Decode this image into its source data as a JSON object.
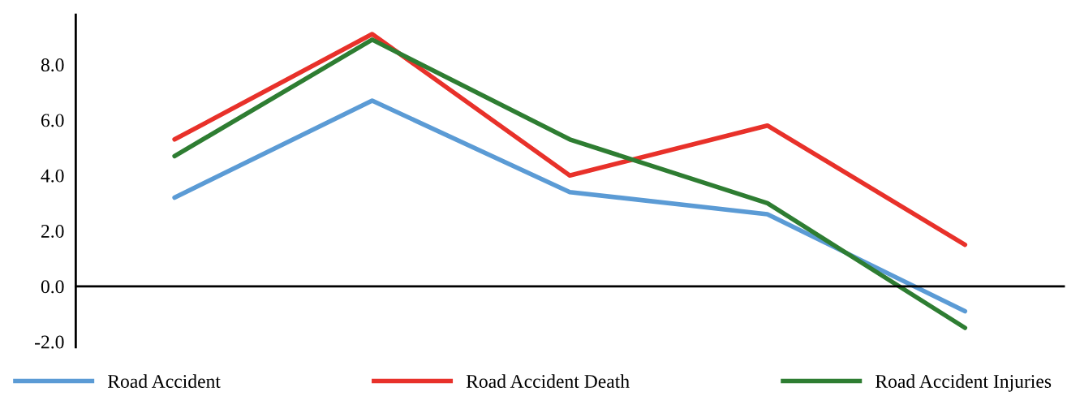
{
  "chart_data": {
    "type": "line",
    "categories": [
      null,
      null,
      null,
      null,
      null
    ],
    "series": [
      {
        "name": "Road Accident",
        "color": "#5b9bd5",
        "values": [
          3.2,
          6.7,
          3.4,
          2.6,
          -0.9
        ]
      },
      {
        "name": "Road Accident Death",
        "color": "#e8312a",
        "values": [
          5.3,
          9.1,
          4.0,
          5.8,
          1.5
        ]
      },
      {
        "name": "Road Accident Injuries",
        "color": "#2e7d32",
        "values": [
          4.7,
          8.9,
          5.3,
          3.0,
          -1.5
        ]
      }
    ],
    "ylim": [
      -2.2,
      9.8
    ],
    "yticks": [
      {
        "value": -2,
        "label": "-2.0"
      },
      {
        "value": 0,
        "label": "0.0"
      },
      {
        "value": 2,
        "label": "2.0"
      },
      {
        "value": 4,
        "label": "4.0"
      },
      {
        "value": 6,
        "label": "6.0"
      },
      {
        "value": 8,
        "label": "8.0"
      }
    ],
    "legend": "bottom",
    "marker": "none",
    "line_style": "solid"
  }
}
